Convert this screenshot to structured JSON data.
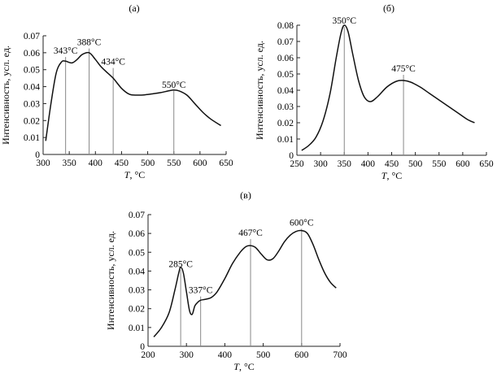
{
  "chart_data": [
    {
      "type": "line",
      "panel_label": "(а)",
      "xlabel_var": "T",
      "xlabel_unit": ", °C",
      "ylabel": "Интенсивность, усл. ед.",
      "xlim": [
        300,
        650
      ],
      "ylim": [
        0,
        0.07
      ],
      "xticks": [
        300,
        350,
        400,
        450,
        500,
        550,
        600,
        650
      ],
      "yticks": [
        0,
        0.01,
        0.02,
        0.03,
        0.04,
        0.05,
        0.06,
        0.07
      ],
      "xtick_labels": [
        "300",
        "350",
        "400",
        "450",
        "500",
        "550",
        "600",
        "650"
      ],
      "ytick_labels": [
        "0",
        "0.01",
        "0.02",
        "0.03",
        "0.04",
        "0.05",
        "0.06",
        "0.07"
      ],
      "x": [
        305,
        315,
        325,
        335,
        343,
        355,
        365,
        375,
        388,
        400,
        410,
        420,
        434,
        450,
        465,
        480,
        495,
        510,
        525,
        540,
        550,
        560,
        575,
        590,
        605,
        620,
        640
      ],
      "y": [
        0.008,
        0.03,
        0.048,
        0.0545,
        0.055,
        0.054,
        0.056,
        0.059,
        0.06,
        0.056,
        0.052,
        0.049,
        0.045,
        0.039,
        0.0355,
        0.035,
        0.0352,
        0.0358,
        0.0365,
        0.0375,
        0.038,
        0.0375,
        0.035,
        0.03,
        0.025,
        0.021,
        0.017
      ],
      "peaks": [
        {
          "x": 343,
          "label": "343°C",
          "line_top": 0.0575
        },
        {
          "x": 388,
          "label": "388°C",
          "line_top": 0.0625
        },
        {
          "x": 434,
          "label": "434°C",
          "line_top": 0.051
        },
        {
          "x": 550,
          "label": "550°C",
          "line_top": 0.0375
        }
      ]
    },
    {
      "type": "line",
      "panel_label": "(б)",
      "xlabel_var": "T",
      "xlabel_unit": ", °C",
      "ylabel": "Интенсивность, усл. ед.",
      "xlim": [
        250,
        650
      ],
      "ylim": [
        0,
        0.08
      ],
      "xticks": [
        250,
        300,
        350,
        400,
        450,
        500,
        550,
        600,
        650
      ],
      "yticks": [
        0,
        0.01,
        0.02,
        0.03,
        0.04,
        0.05,
        0.06,
        0.07,
        0.08
      ],
      "xtick_labels": [
        "250",
        "300",
        "350",
        "400",
        "450",
        "500",
        "550",
        "600",
        "650"
      ],
      "ytick_labels": [
        "0",
        "0.01",
        "0.02",
        "0.03",
        "0.04",
        "0.05",
        "0.06",
        "0.07",
        "0.08"
      ],
      "x": [
        260,
        275,
        290,
        305,
        320,
        333,
        343,
        350,
        358,
        368,
        380,
        392,
        405,
        420,
        440,
        460,
        475,
        490,
        510,
        530,
        550,
        570,
        590,
        610,
        625
      ],
      "y": [
        0.003,
        0.006,
        0.011,
        0.021,
        0.038,
        0.06,
        0.075,
        0.08,
        0.076,
        0.062,
        0.046,
        0.036,
        0.033,
        0.036,
        0.042,
        0.0455,
        0.046,
        0.045,
        0.042,
        0.038,
        0.034,
        0.03,
        0.026,
        0.022,
        0.02
      ],
      "peaks": [
        {
          "x": 350,
          "label": "350°C",
          "line_top": 0.079
        },
        {
          "x": 475,
          "label": "475°C",
          "line_top": 0.0495
        }
      ]
    },
    {
      "type": "line",
      "panel_label": "(в)",
      "xlabel_var": "T",
      "xlabel_unit": ", °C",
      "ylabel": "Интенсивность, усл. ед.",
      "xlim": [
        200,
        700
      ],
      "ylim": [
        0,
        0.07
      ],
      "xticks": [
        200,
        300,
        400,
        500,
        600,
        700
      ],
      "yticks": [
        0,
        0.01,
        0.02,
        0.03,
        0.04,
        0.05,
        0.06,
        0.07
      ],
      "xtick_labels": [
        "200",
        "300",
        "400",
        "500",
        "600",
        "700"
      ],
      "ytick_labels": [
        "0",
        "0.01",
        "0.02",
        "0.03",
        "0.04",
        "0.05",
        "0.06",
        "0.07"
      ],
      "x": [
        215,
        235,
        255,
        270,
        280,
        285,
        292,
        300,
        308,
        315,
        322,
        330,
        337,
        350,
        365,
        380,
        400,
        420,
        440,
        455,
        467,
        480,
        495,
        510,
        525,
        540,
        555,
        570,
        585,
        600,
        615,
        630,
        645,
        660,
        675,
        690
      ],
      "y": [
        0.005,
        0.01,
        0.018,
        0.03,
        0.039,
        0.042,
        0.039,
        0.029,
        0.019,
        0.017,
        0.0215,
        0.0235,
        0.0245,
        0.025,
        0.026,
        0.029,
        0.036,
        0.044,
        0.05,
        0.053,
        0.0535,
        0.0525,
        0.049,
        0.046,
        0.0465,
        0.0505,
        0.0555,
        0.059,
        0.061,
        0.0615,
        0.06,
        0.054,
        0.046,
        0.039,
        0.034,
        0.031
      ],
      "peaks": [
        {
          "x": 285,
          "label": "285°C",
          "line_top": 0.0405
        },
        {
          "x": 337,
          "label": "337°C",
          "line_top": 0.0265
        },
        {
          "x": 467,
          "label": "467°C",
          "line_top": 0.057
        },
        {
          "x": 600,
          "label": "600°C",
          "line_top": 0.0625
        }
      ]
    }
  ]
}
